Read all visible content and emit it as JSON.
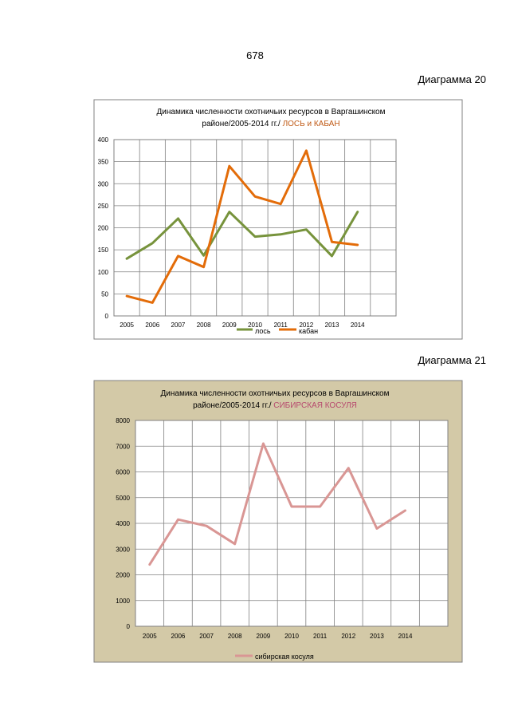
{
  "page": {
    "number": "678",
    "caption1": "Диаграмма 20",
    "caption2": "Диаграмма 21"
  },
  "colors": {
    "los": "#77933c",
    "kaban": "#e36c09",
    "kosulya": "#d99694",
    "chart2_bg": "#d3c9a7"
  },
  "chart_data": [
    {
      "type": "line",
      "title_line1": "Динамика численности охотничьих ресурсов в Варгашинском",
      "title_line2": "районе/2005-2014 гг./",
      "title_accent": "ЛОСЬ и КАБАН",
      "x": [
        "2005",
        "2006",
        "2007",
        "2008",
        "2009",
        "2010",
        "2011",
        "2012",
        "2013",
        "2014"
      ],
      "ylim": [
        0,
        400
      ],
      "yticks": [
        "0",
        "50",
        "100",
        "150",
        "200",
        "250",
        "300",
        "350",
        "400"
      ],
      "series": [
        {
          "name": "лось",
          "values": [
            130,
            165,
            221,
            137,
            236,
            180,
            185,
            196,
            136,
            236
          ]
        },
        {
          "name": "кабан",
          "values": [
            45,
            30,
            136,
            111,
            340,
            271,
            254,
            375,
            168,
            161
          ]
        }
      ],
      "legend": "bottom"
    },
    {
      "type": "line",
      "title_line1": "Динамика численности  охотничьих ресурсов  в Варгашинском",
      "title_line2": "районе/2005-2014  гг./",
      "title_accent": "СИБИРСКАЯ КОСУЛЯ",
      "x": [
        "2005",
        "2006",
        "2007",
        "2008",
        "2009",
        "2010",
        "2011",
        "2012",
        "2013",
        "2014"
      ],
      "ylim": [
        0,
        8000
      ],
      "yticks": [
        "0",
        "1000",
        "2000",
        "3000",
        "4000",
        "5000",
        "6000",
        "7000",
        "8000"
      ],
      "series": [
        {
          "name": "сибирская косуля",
          "values": [
            2400,
            4150,
            3900,
            3200,
            7100,
            4650,
            4650,
            6150,
            3800,
            4500
          ]
        }
      ],
      "legend": "bottom"
    }
  ]
}
